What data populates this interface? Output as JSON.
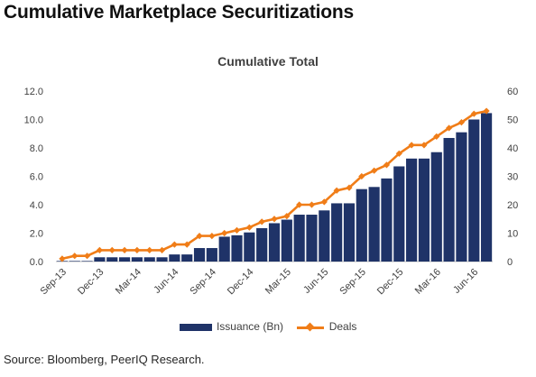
{
  "page_title": "Cumulative Marketplace Securitizations",
  "source": "Source: Bloomberg, PeerIQ Research.",
  "colors": {
    "bars": "#1f3368",
    "line": "#f07d18"
  },
  "chart_data": {
    "type": "bar+line",
    "title": "Cumulative Total",
    "xlabel": "",
    "ylabel": "",
    "ylim_left": [
      0,
      12
    ],
    "ylim_right": [
      0,
      60
    ],
    "left_ticks": [
      "0.0",
      "2.0",
      "4.0",
      "6.0",
      "8.0",
      "10.0",
      "12.0"
    ],
    "right_ticks": [
      "0",
      "10",
      "20",
      "30",
      "40",
      "50",
      "60"
    ],
    "x_tick_labels": [
      "Sep-13",
      "Dec-13",
      "Mar-14",
      "Jun-14",
      "Sep-14",
      "Dec-14",
      "Mar-15",
      "Jun-15",
      "Sep-15",
      "Dec-15",
      "Mar-16",
      "Jun-16"
    ],
    "months": [
      "Sep-13",
      "Oct-13",
      "Nov-13",
      "Dec-13",
      "Jan-14",
      "Feb-14",
      "Mar-14",
      "Apr-14",
      "May-14",
      "Jun-14",
      "Jul-14",
      "Aug-14",
      "Sep-14",
      "Oct-14",
      "Nov-14",
      "Dec-14",
      "Jan-15",
      "Feb-15",
      "Mar-15",
      "Apr-15",
      "May-15",
      "Jun-15",
      "Jul-15",
      "Aug-15",
      "Sep-15",
      "Oct-15",
      "Nov-15",
      "Dec-15",
      "Jan-16",
      "Feb-16",
      "Mar-16",
      "Apr-16",
      "May-16",
      "Jun-16",
      "Jul-16"
    ],
    "series": [
      {
        "name": "Issuance (Bn)",
        "axis": "left",
        "kind": "bar",
        "values": [
          0.04,
          0.04,
          0.04,
          0.3,
          0.3,
          0.3,
          0.3,
          0.3,
          0.3,
          0.5,
          0.5,
          0.95,
          0.95,
          1.75,
          1.85,
          2.05,
          2.35,
          2.7,
          2.95,
          3.3,
          3.3,
          3.6,
          4.1,
          4.1,
          5.1,
          5.25,
          5.85,
          6.7,
          7.25,
          7.25,
          7.7,
          8.7,
          9.1,
          10.0,
          10.45
        ]
      },
      {
        "name": "Deals",
        "axis": "right",
        "kind": "line",
        "values": [
          1,
          2,
          2,
          4,
          4,
          4,
          4,
          4,
          4,
          6,
          6,
          9,
          9,
          10,
          11,
          12,
          14,
          15,
          16,
          20,
          20,
          21,
          25,
          26,
          30,
          32,
          34,
          38,
          41,
          41,
          44,
          47,
          49,
          52,
          53
        ]
      }
    ],
    "grid": false,
    "legend_position": "bottom"
  }
}
